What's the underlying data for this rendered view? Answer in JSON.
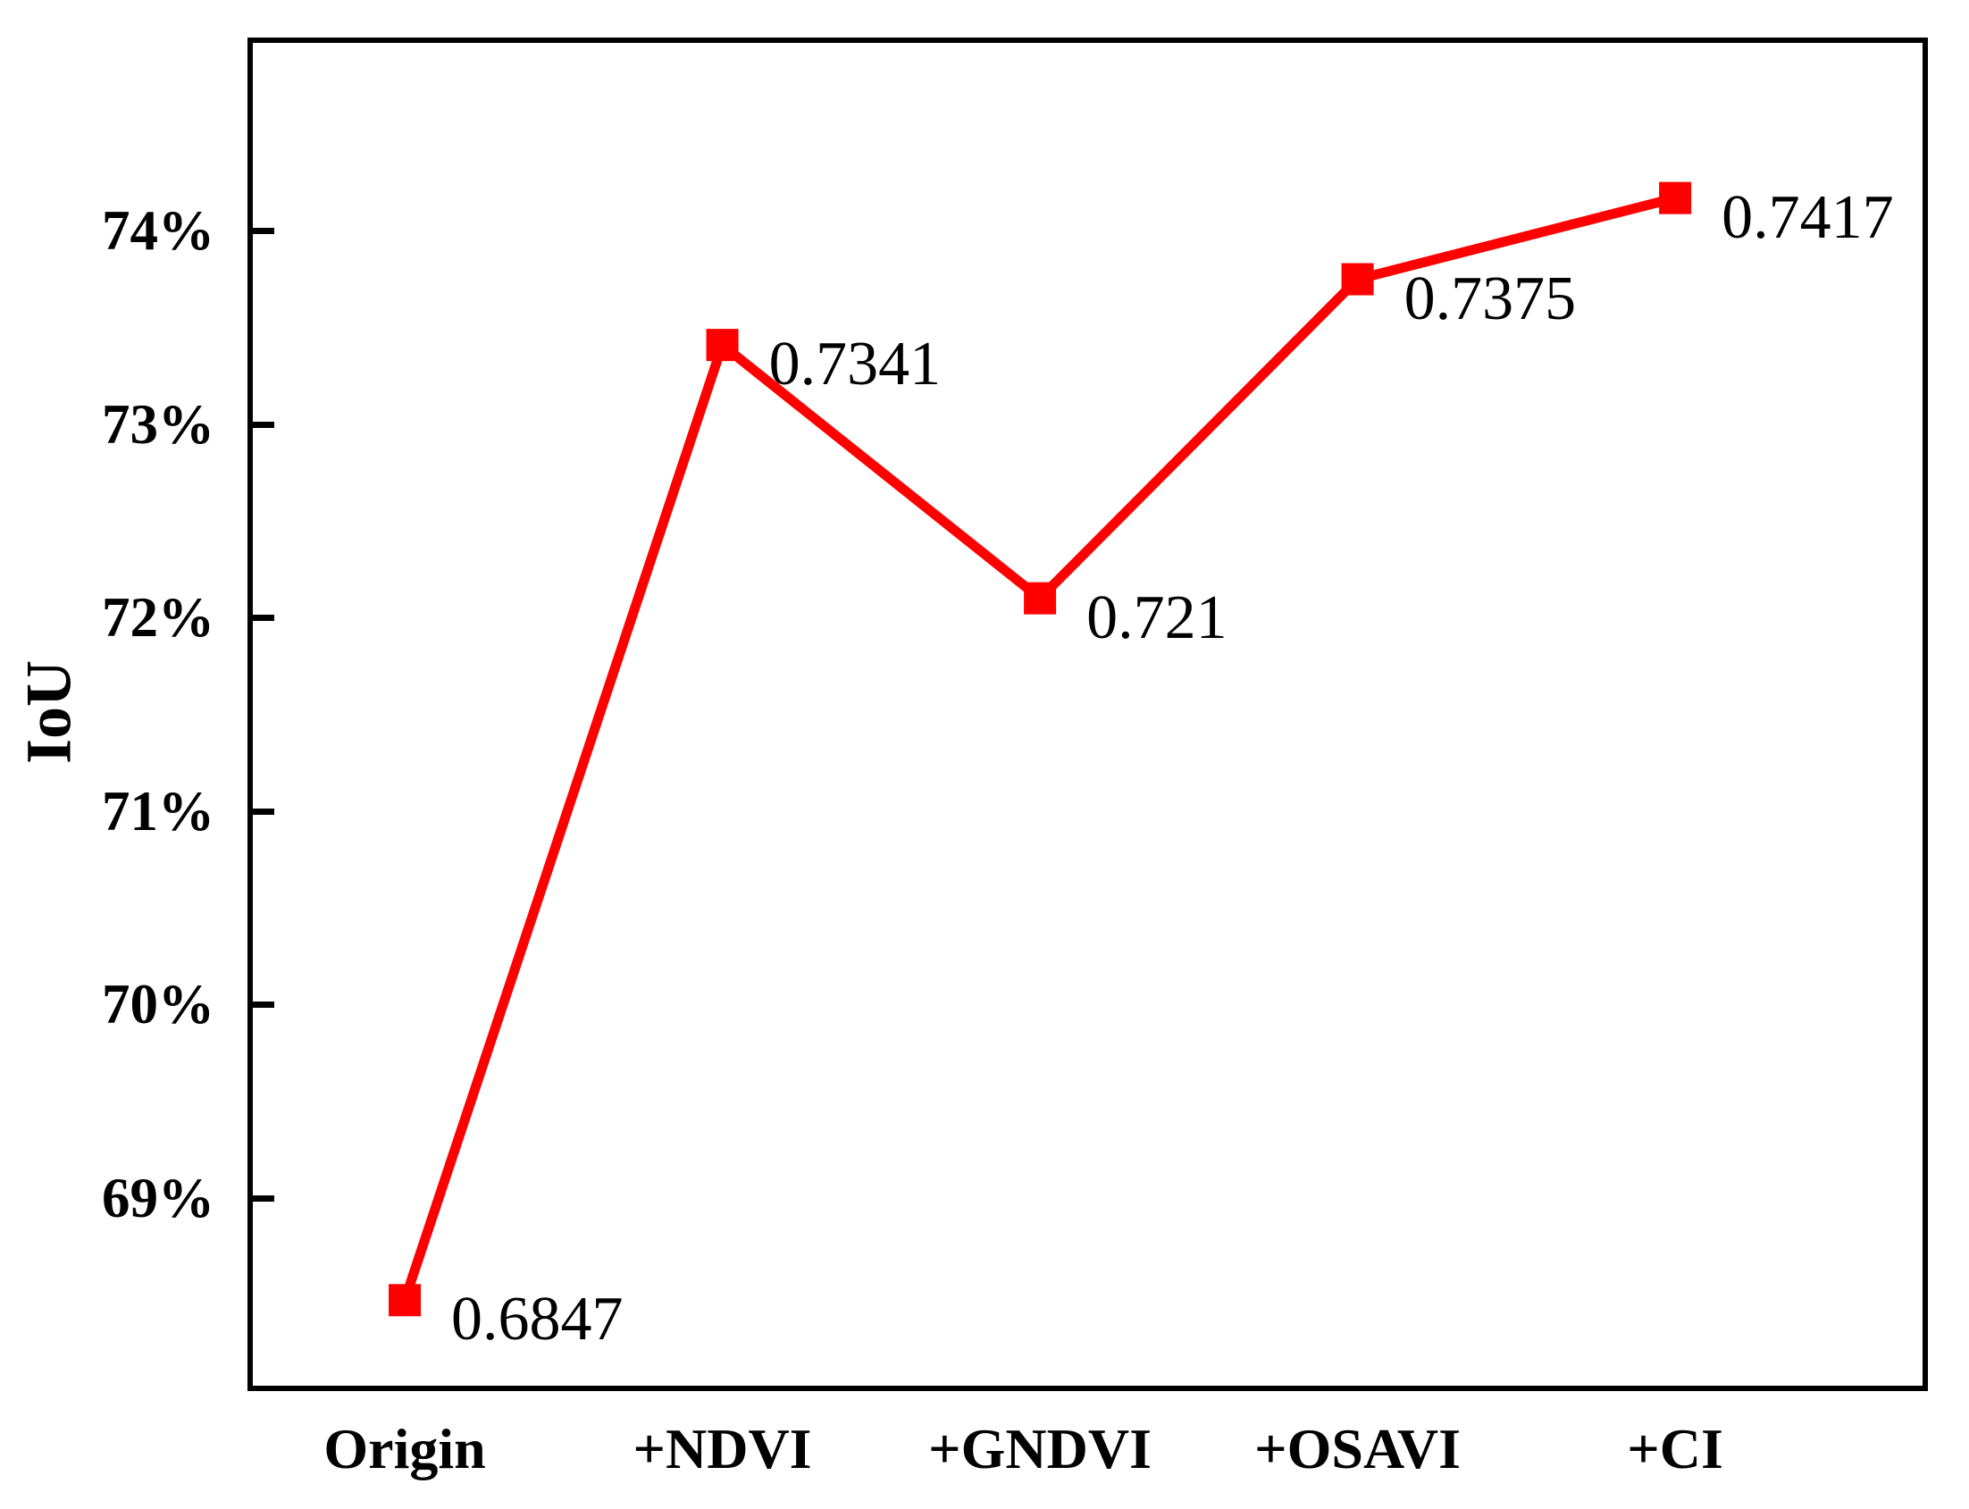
{
  "chart_data": {
    "type": "line",
    "categories": [
      "Origin",
      "+NDVI",
      "+GNDVI",
      "+OSAVI",
      "+CI"
    ],
    "values": [
      0.6847,
      0.7341,
      0.721,
      0.7375,
      0.7417
    ],
    "point_labels": [
      "0.6847",
      "0.7341",
      "0.721",
      "0.7375",
      "0.7417"
    ],
    "series": [
      {
        "name": "IoU",
        "values": [
          0.6847,
          0.7341,
          0.721,
          0.7375,
          0.7417
        ]
      }
    ],
    "title": "",
    "xlabel": "",
    "ylabel": "IoU",
    "y_ticks": [
      {
        "label": "69%",
        "value": 69
      },
      {
        "label": "70%",
        "value": 70
      },
      {
        "label": "71%",
        "value": 71
      },
      {
        "label": "72%",
        "value": 72
      },
      {
        "label": "73%",
        "value": 73
      },
      {
        "label": "74%",
        "value": 74
      }
    ],
    "ylim_percent": [
      68,
      75
    ],
    "grid": "off",
    "legend": "none",
    "line_color": "#ff0000",
    "marker": "square",
    "marker_color": "#ff0000",
    "axis_color": "#000000",
    "text_color": "#000000"
  }
}
